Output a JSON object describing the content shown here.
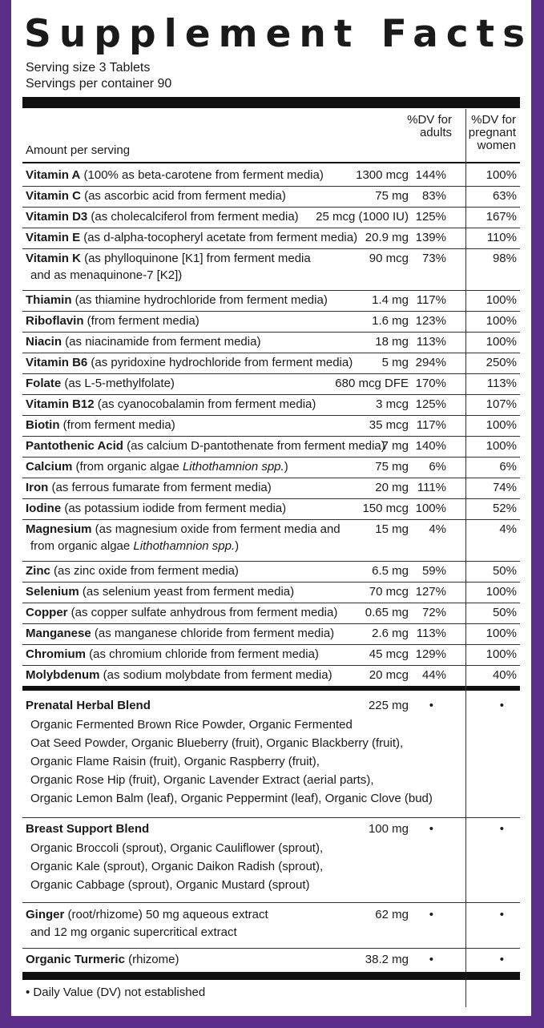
{
  "title": "Supplement Facts",
  "serving_size": "Serving size 3 Tablets",
  "servings_per_container": "Servings per container 90",
  "header": {
    "amount_per_serving": "Amount per serving",
    "dv_adults": "%DV for adults",
    "dv_pregnant": "%DV for pregnant women"
  },
  "nutrients": [
    {
      "name": "Vitamin A",
      "detail": " (100% as beta-carotene from ferment media)",
      "amount": "1300 mcg",
      "dv_adults": "144%",
      "dv_pregnant": "100%"
    },
    {
      "name": "Vitamin C",
      "detail": " (as ascorbic acid from ferment media)",
      "amount": "75 mg",
      "dv_adults": "83%",
      "dv_pregnant": "63%"
    },
    {
      "name": "Vitamin D3",
      "detail": " (as cholecalciferol from ferment media)",
      "amount": "25 mcg (1000 IU)",
      "dv_adults": "125%",
      "dv_pregnant": "167%"
    },
    {
      "name": "Vitamin E",
      "detail": " (as d-alpha-tocopheryl acetate from ferment media)",
      "amount": "20.9 mg",
      "dv_adults": "139%",
      "dv_pregnant": "110%"
    },
    {
      "name": "Vitamin K",
      "detail": " (as phylloquinone [K1] from ferment media",
      "detail2": "and as menaquinone-7 [K2])",
      "amount": "90 mcg",
      "dv_adults": "73%",
      "dv_pregnant": "98%"
    },
    {
      "name": "Thiamin",
      "detail": " (as thiamine hydrochloride from ferment media)",
      "amount": "1.4 mg",
      "dv_adults": "117%",
      "dv_pregnant": "100%"
    },
    {
      "name": "Riboflavin",
      "detail": " (from ferment media)",
      "amount": "1.6 mg",
      "dv_adults": "123%",
      "dv_pregnant": "100%"
    },
    {
      "name": "Niacin",
      "detail": " (as niacinamide from ferment media)",
      "amount": "18 mg",
      "dv_adults": "113%",
      "dv_pregnant": "100%"
    },
    {
      "name": "Vitamin B6",
      "detail": " (as pyridoxine hydrochloride from ferment media)",
      "amount": "5 mg",
      "dv_adults": "294%",
      "dv_pregnant": "250%"
    },
    {
      "name": "Folate",
      "detail": " (as L-5-methylfolate)",
      "amount": "680 mcg DFE",
      "dv_adults": "170%",
      "dv_pregnant": "113%"
    },
    {
      "name": "Vitamin B12",
      "detail": " (as cyanocobalamin from ferment media)",
      "amount": "3 mcg",
      "dv_adults": "125%",
      "dv_pregnant": "107%"
    },
    {
      "name": "Biotin",
      "detail": " (from ferment media)",
      "amount": "35 mcg",
      "dv_adults": "117%",
      "dv_pregnant": "100%"
    },
    {
      "name": "Pantothenic Acid",
      "detail": " (as calcium D-pantothenate from ferment media)",
      "amount": "7 mg",
      "dv_adults": "140%",
      "dv_pregnant": "100%"
    },
    {
      "name": "Calcium",
      "detail": " (from organic algae ",
      "detail_italic": "Lithothamnion spp.",
      "detail_end": ")",
      "amount": "75 mg",
      "dv_adults": "6%",
      "dv_pregnant": "6%"
    },
    {
      "name": "Iron",
      "detail": " (as ferrous fumarate from ferment media)",
      "amount": "20 mg",
      "dv_adults": "111%",
      "dv_pregnant": "74%"
    },
    {
      "name": "Iodine",
      "detail": " (as potassium iodide from ferment media)",
      "amount": "150 mcg",
      "dv_adults": "100%",
      "dv_pregnant": "52%"
    },
    {
      "name": "Magnesium",
      "detail": " (as magnesium oxide from ferment media and",
      "detail2": "from organic algae ",
      "detail2_italic": "Lithothamnion spp.",
      "detail2_end": ")",
      "amount": "15 mg",
      "dv_adults": "4%",
      "dv_pregnant": "4%"
    },
    {
      "name": "Zinc",
      "detail": " (as zinc oxide from ferment media)",
      "amount": "6.5 mg",
      "dv_adults": "59%",
      "dv_pregnant": "50%"
    },
    {
      "name": "Selenium",
      "detail": " (as selenium yeast from ferment media)",
      "amount": "70 mcg",
      "dv_adults": "127%",
      "dv_pregnant": "100%"
    },
    {
      "name": "Copper",
      "detail": " (as copper sulfate anhydrous from ferment media)",
      "amount": "0.65 mg",
      "dv_adults": "72%",
      "dv_pregnant": "50%"
    },
    {
      "name": "Manganese",
      "detail": " (as manganese chloride from ferment media)",
      "amount": "2.6 mg",
      "dv_adults": "113%",
      "dv_pregnant": "100%"
    },
    {
      "name": "Chromium",
      "detail": " (as chromium chloride from ferment media)",
      "amount": "45 mcg",
      "dv_adults": "129%",
      "dv_pregnant": "100%"
    },
    {
      "name": "Molybdenum",
      "detail": " (as sodium molybdate from ferment media)",
      "amount": "20 mcg",
      "dv_adults": "44%",
      "dv_pregnant": "40%"
    }
  ],
  "blends": [
    {
      "name": "Prenatal Herbal Blend",
      "amount": "225 mg",
      "dv_adults": "•",
      "dv_pregnant": "•",
      "lines": [
        "Organic Fermented Brown Rice Powder, Organic Fermented",
        "Oat Seed Powder,  Organic Blueberry (fruit), Organic Blackberry (fruit),",
        "Organic Flame Raisin (fruit), Organic Raspberry (fruit),",
        "Organic Rose Hip (fruit), Organic Lavender Extract (aerial parts),",
        "Organic Lemon Balm (leaf), Organic Peppermint (leaf), Organic Clove (bud)"
      ]
    },
    {
      "name": "Breast Support Blend",
      "amount": "100 mg",
      "dv_adults": "•",
      "dv_pregnant": "•",
      "lines": [
        "Organic Broccoli (sprout), Organic Cauliflower (sprout),",
        "Organic Kale (sprout), Organic Daikon Radish (sprout),",
        "Organic Cabbage (sprout), Organic Mustard (sprout)"
      ]
    },
    {
      "name": "Ginger",
      "detail": " (root/rhizome) 50 mg aqueous extract",
      "detail2": "and 12 mg organic supercritical extract",
      "amount": "62 mg",
      "dv_adults": "•",
      "dv_pregnant": "•"
    },
    {
      "name": "Organic Turmeric",
      "detail": " (rhizome)",
      "amount": "38.2 mg",
      "dv_adults": "•",
      "dv_pregnant": "•"
    }
  ],
  "footnote": "• Daily Value (DV) not established"
}
